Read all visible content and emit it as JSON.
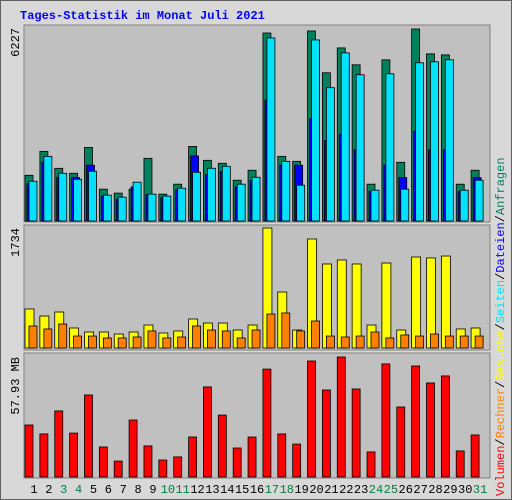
{
  "chart_data": [
    {
      "type": "bar",
      "title": "Tages-Statistik im Monat Juli 2021",
      "legend_separator": "/",
      "ylim": [
        0,
        6227
      ],
      "yticks": [
        6227
      ],
      "series": [
        {
          "name": "Anfragen",
          "color": "#00805c",
          "values": [
            1475,
            2247,
            1700,
            1540,
            2375,
            1027,
            900,
            1027,
            2022,
            867,
            1188,
            2407,
            1958,
            1862,
            1316,
            1637,
            6066,
            2086,
            1926,
            6131,
            4783,
            5585,
            5040,
            1188,
            5200,
            1894,
            6195,
            5393,
            5360,
            1188,
            1637
          ]
        },
        {
          "name": "Dateien",
          "color": "#0000ff",
          "values": [
            1200,
            1900,
            1400,
            1400,
            1800,
            800,
            700,
            1100,
            850,
            750,
            1000,
            2100,
            1500,
            1600,
            1100,
            1300,
            3900,
            1800,
            1800,
            3300,
            2600,
            2800,
            2300,
            950,
            1800,
            1400,
            2900,
            2300,
            2300,
            950,
            1400
          ]
        },
        {
          "name": "Seiten",
          "color": "#00e0ff",
          "values": [
            1284,
            2086,
            1540,
            1348,
            1605,
            835,
            770,
            1252,
            867,
            803,
            1059,
            1573,
            1701,
            1765,
            1188,
            1412,
            5906,
            1926,
            1155,
            5842,
            4301,
            5425,
            4718,
            995,
            4750,
            1027,
            5104,
            5136,
            5200,
            995,
            1316
          ]
        }
      ]
    },
    {
      "type": "bar",
      "ylim": [
        0,
        1734
      ],
      "yticks": [
        1734
      ],
      "series": [
        {
          "name": "Besuche",
          "color": "#ffff00",
          "values": [
            564,
            462,
            520,
            289,
            231,
            231,
            202,
            231,
            332,
            217,
            246,
            419,
            361,
            361,
            260,
            332,
            1734,
            809,
            260,
            1575,
            1214,
            1272,
            1214,
            332,
            1228,
            260,
            1315,
            1301,
            1329,
            275,
            289
          ]
        },
        {
          "name": "Rechner",
          "color": "#ff8000",
          "values": [
            318,
            275,
            347,
            173,
            173,
            145,
            145,
            159,
            246,
            145,
            159,
            318,
            260,
            246,
            145,
            260,
            491,
            506,
            246,
            390,
            173,
            159,
            173,
            231,
            145,
            188,
            173,
            202,
            173,
            173,
            173
          ]
        }
      ]
    },
    {
      "type": "bar",
      "ylim": [
        0,
        57.93
      ],
      "yticks": [
        {
          "value": 57.93,
          "label": "57.93 MB"
        }
      ],
      "categories": [
        "1",
        "2",
        "3",
        "4",
        "5",
        "6",
        "7",
        "8",
        "9",
        "10",
        "11",
        "12",
        "13",
        "14",
        "15",
        "16",
        "17",
        "18",
        "19",
        "20",
        "21",
        "22",
        "23",
        "24",
        "25",
        "26",
        "27",
        "28",
        "29",
        "30",
        "31"
      ],
      "category_colors": [
        "#000000",
        "#000000",
        "#008040",
        "#008040",
        "#000000",
        "#000000",
        "#000000",
        "#000000",
        "#000000",
        "#008040",
        "#008040",
        "#000000",
        "#000000",
        "#000000",
        "#000000",
        "#000000",
        "#008040",
        "#008040",
        "#000000",
        "#000000",
        "#000000",
        "#000000",
        "#000000",
        "#008040",
        "#008040",
        "#000000",
        "#000000",
        "#000000",
        "#000000",
        "#000000",
        "#008040"
      ],
      "series": [
        {
          "name": "Volumen",
          "color": "#ff0000",
          "values": [
            25.1,
            20.8,
            31.9,
            21.2,
            39.6,
            14.5,
            7.7,
            27.5,
            15.0,
            8.2,
            9.7,
            19.3,
            43.5,
            29.9,
            14.0,
            19.3,
            52.1,
            20.8,
            15.9,
            56.0,
            42.0,
            57.93,
            42.5,
            12.1,
            54.6,
            33.8,
            53.6,
            45.4,
            48.8,
            12.6,
            20.3
          ]
        }
      ]
    }
  ]
}
